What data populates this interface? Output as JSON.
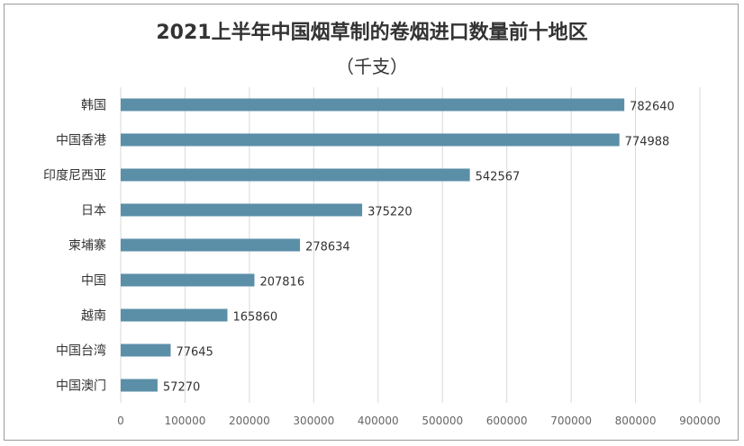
{
  "chart_data": {
    "type": "bar",
    "orientation": "horizontal",
    "title": "2021上半年中国烟草制的卷烟进口数量前十地区",
    "subtitle": "（千支）",
    "categories": [
      "韩国",
      "中国香港",
      "印度尼西亚",
      "日本",
      "柬埔寨",
      "中国",
      "越南",
      "中国台湾",
      "中国澳门"
    ],
    "values": [
      782640,
      774988,
      542567,
      375220,
      278634,
      207816,
      165860,
      77645,
      57270
    ],
    "xlim": [
      0,
      900000
    ],
    "xticks": [
      "0",
      "100000",
      "200000",
      "300000",
      "400000",
      "500000",
      "600000",
      "700000",
      "800000",
      "900000"
    ],
    "grid": true,
    "bar_color": "#5b8fa8",
    "xlabel": "",
    "ylabel": ""
  }
}
